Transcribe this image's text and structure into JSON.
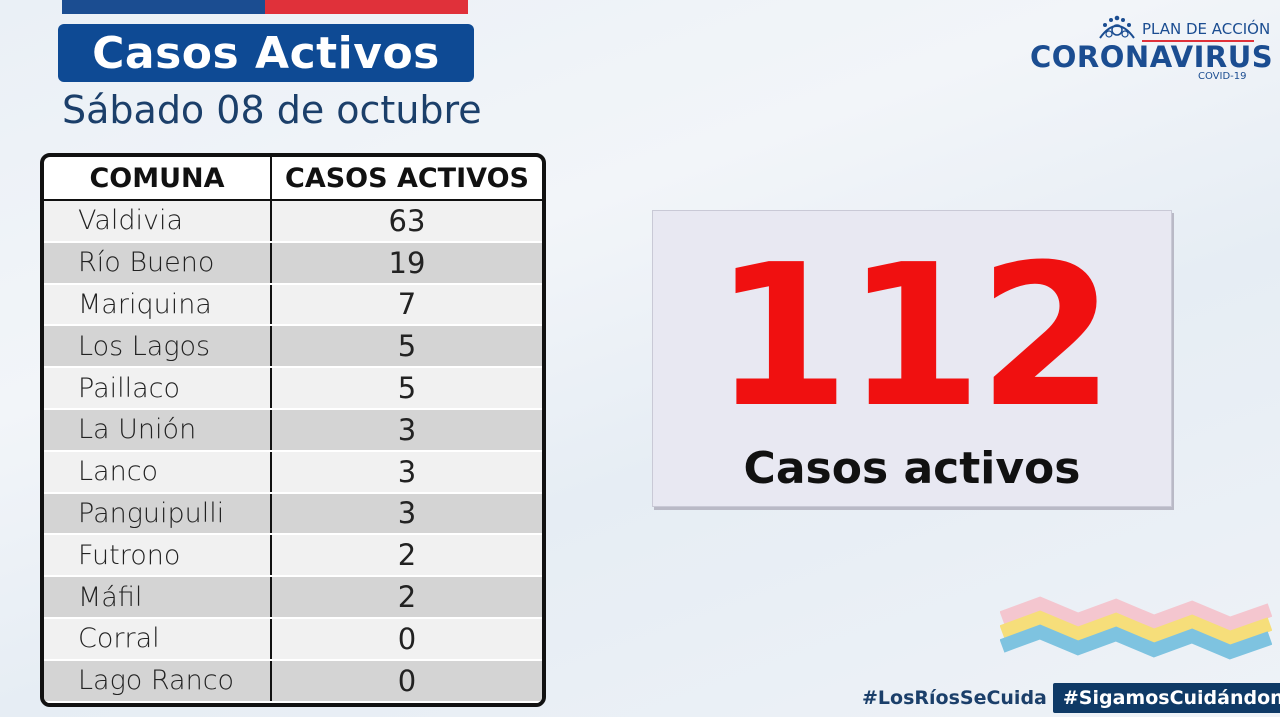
{
  "header": {
    "title": "Casos Activos",
    "subtitle": "Sábado 08 de octubre"
  },
  "logo": {
    "plan_text": "PLAN DE ACCIÓN",
    "main_text": "CORONAVIRUS",
    "sub_text": "COVID-19",
    "icon": "virus-icon"
  },
  "table": {
    "columns": [
      "COMUNA",
      "CASOS ACTIVOS"
    ],
    "rows": [
      {
        "comuna": "Valdivia",
        "casos": "63"
      },
      {
        "comuna": "Río Bueno",
        "casos": "19"
      },
      {
        "comuna": "Mariquina",
        "casos": "7"
      },
      {
        "comuna": "Los Lagos",
        "casos": "5"
      },
      {
        "comuna": "Paillaco",
        "casos": "5"
      },
      {
        "comuna": "La Unión",
        "casos": "3"
      },
      {
        "comuna": "Lanco",
        "casos": "3"
      },
      {
        "comuna": "Panguipulli",
        "casos": "3"
      },
      {
        "comuna": "Futrono",
        "casos": "2"
      },
      {
        "comuna": "Máfil",
        "casos": "2"
      },
      {
        "comuna": "Corral",
        "casos": "0"
      },
      {
        "comuna": "Lago Ranco",
        "casos": "0"
      }
    ]
  },
  "summary": {
    "total": "112",
    "label": "Casos activos"
  },
  "footer": {
    "hashtag_1": "#LosRíosSeCuida",
    "hashtag_2": "#SigamosCuidándonos"
  },
  "colors": {
    "brand_blue": "#0e4a94",
    "accent_red": "#e0313a",
    "total_red": "#f01010"
  }
}
